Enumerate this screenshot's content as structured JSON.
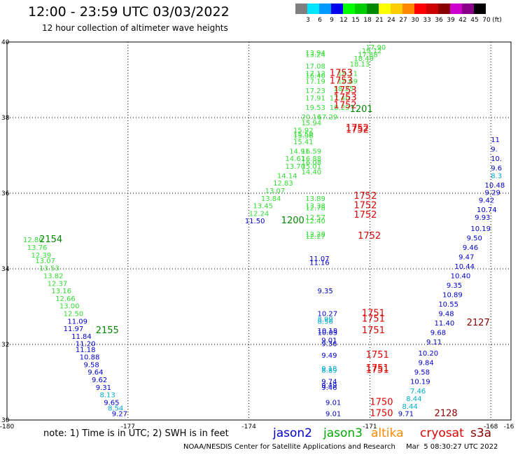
{
  "header": {
    "title": "12:00 - 23:59 UTC 03/03/2022",
    "subtitle": "12 hour collection of altimeter wave heights"
  },
  "colorbar": {
    "unit": "(ft)",
    "bins": [
      {
        "label": "3",
        "color": "#7f7f7f"
      },
      {
        "label": "6",
        "color": "#00e5ff"
      },
      {
        "label": "9",
        "color": "#0099ff"
      },
      {
        "label": "12",
        "color": "#0000ee"
      },
      {
        "label": "15",
        "color": "#00ff00"
      },
      {
        "label": "18",
        "color": "#00cc00"
      },
      {
        "label": "21",
        "color": "#008800"
      },
      {
        "label": "24",
        "color": "#ffff00"
      },
      {
        "label": "27",
        "color": "#ffcc00"
      },
      {
        "label": "30",
        "color": "#ff8800"
      },
      {
        "label": "33",
        "color": "#ff0000"
      },
      {
        "label": "36",
        "color": "#cc0000"
      },
      {
        "label": "39",
        "color": "#880000"
      },
      {
        "label": "42",
        "color": "#cc00cc"
      },
      {
        "label": "45",
        "color": "#880088"
      },
      {
        "label": "70",
        "color": "#000000"
      }
    ]
  },
  "map": {
    "lon_range": [
      -180,
      -168
    ],
    "lat_range": [
      30,
      40
    ],
    "lon_ticks": [
      "-180",
      "-177",
      "-174",
      "-171",
      "-168",
      "-16"
    ],
    "lat_ticks": [
      "40",
      "38",
      "36",
      "34",
      "32",
      "30"
    ],
    "colors": {
      "jason2": "#0000cc",
      "jason3": "#00aa00",
      "altika": "#ff8800",
      "cryosat": "#dd0000",
      "s3a": "#880000",
      "lightgreen": "#33dd33",
      "cyan": "#00aacc",
      "darkgreen": "#008800"
    },
    "labels": [
      {
        "lon": -171.1,
        "lat": 39.8,
        "text": "17.90",
        "c": "lightgreen"
      },
      {
        "lon": -171.2,
        "lat": 39.7,
        "text": "19.12",
        "c": "lightgreen"
      },
      {
        "lon": -171.3,
        "lat": 39.6,
        "text": "17.88",
        "c": "lightgreen"
      },
      {
        "lon": -171.4,
        "lat": 39.5,
        "text": "18.49",
        "c": "lightgreen"
      },
      {
        "lon": -171.5,
        "lat": 39.35,
        "text": "18.13",
        "c": "lightgreen"
      },
      {
        "lon": -172.6,
        "lat": 39.65,
        "text": "13.94",
        "c": "lightgreen"
      },
      {
        "lon": -172.6,
        "lat": 39.6,
        "text": "13.24",
        "c": "lightgreen"
      },
      {
        "lon": -172.6,
        "lat": 39.3,
        "text": "17.08",
        "c": "lightgreen"
      },
      {
        "lon": -172.6,
        "lat": 39.1,
        "text": "17.12",
        "c": "lightgreen"
      },
      {
        "lon": -172.6,
        "lat": 39.05,
        "text": "16.40",
        "c": "lightgreen"
      },
      {
        "lon": -172.6,
        "lat": 38.9,
        "text": "17.19",
        "c": "lightgreen"
      },
      {
        "lon": -171.8,
        "lat": 39.1,
        "text": "18.11",
        "c": "lightgreen"
      },
      {
        "lon": -171.8,
        "lat": 38.9,
        "text": "18.69",
        "c": "lightgreen"
      },
      {
        "lon": -172.6,
        "lat": 38.65,
        "text": "17.23",
        "c": "lightgreen"
      },
      {
        "lon": -171.9,
        "lat": 38.7,
        "text": "18.25",
        "c": "lightgreen"
      },
      {
        "lon": -172.6,
        "lat": 38.45,
        "text": "17.91",
        "c": "lightgreen"
      },
      {
        "lon": -172.0,
        "lat": 38.45,
        "text": "17.40",
        "c": "lightgreen"
      },
      {
        "lon": -172.6,
        "lat": 38.2,
        "text": "19.53",
        "c": "lightgreen"
      },
      {
        "lon": -172.0,
        "lat": 38.2,
        "text": "18.29",
        "c": "lightgreen"
      },
      {
        "lon": -172.7,
        "lat": 37.95,
        "text": "20.16",
        "c": "lightgreen"
      },
      {
        "lon": -172.3,
        "lat": 37.95,
        "text": "17.29",
        "c": "lightgreen"
      },
      {
        "lon": -172.7,
        "lat": 37.8,
        "text": "15.94",
        "c": "lightgreen"
      },
      {
        "lon": -172.9,
        "lat": 37.6,
        "text": "15.92",
        "c": "lightgreen"
      },
      {
        "lon": -172.9,
        "lat": 37.5,
        "text": "15.59",
        "c": "lightgreen"
      },
      {
        "lon": -172.9,
        "lat": 37.45,
        "text": "15.96",
        "c": "lightgreen"
      },
      {
        "lon": -172.9,
        "lat": 37.3,
        "text": "15.41",
        "c": "lightgreen"
      },
      {
        "lon": -173.0,
        "lat": 37.05,
        "text": "14.91",
        "c": "lightgreen"
      },
      {
        "lon": -172.7,
        "lat": 37.05,
        "text": "16.59",
        "c": "lightgreen"
      },
      {
        "lon": -173.1,
        "lat": 36.85,
        "text": "14.61",
        "c": "lightgreen"
      },
      {
        "lon": -172.7,
        "lat": 36.85,
        "text": "16.88",
        "c": "lightgreen"
      },
      {
        "lon": -172.7,
        "lat": 36.75,
        "text": "16.08",
        "c": "lightgreen"
      },
      {
        "lon": -173.1,
        "lat": 36.65,
        "text": "13.70",
        "c": "lightgreen"
      },
      {
        "lon": -172.7,
        "lat": 36.65,
        "text": "15.01",
        "c": "lightgreen"
      },
      {
        "lon": -172.7,
        "lat": 36.5,
        "text": "14.40",
        "c": "lightgreen"
      },
      {
        "lon": -173.3,
        "lat": 36.4,
        "text": "14.14",
        "c": "lightgreen"
      },
      {
        "lon": -173.4,
        "lat": 36.2,
        "text": "12.83",
        "c": "lightgreen"
      },
      {
        "lon": -173.6,
        "lat": 36.0,
        "text": "13.07",
        "c": "lightgreen"
      },
      {
        "lon": -173.7,
        "lat": 35.8,
        "text": "13.84",
        "c": "lightgreen"
      },
      {
        "lon": -173.9,
        "lat": 35.6,
        "text": "13.45",
        "c": "lightgreen"
      },
      {
        "lon": -174.0,
        "lat": 35.4,
        "text": "12.24",
        "c": "lightgreen"
      },
      {
        "lon": -174.1,
        "lat": 35.2,
        "text": "11.50",
        "c": "jason2"
      },
      {
        "lon": -172.6,
        "lat": 35.8,
        "text": "13.89",
        "c": "lightgreen"
      },
      {
        "lon": -172.6,
        "lat": 35.6,
        "text": "13.38",
        "c": "lightgreen"
      },
      {
        "lon": -172.6,
        "lat": 35.55,
        "text": "12.78",
        "c": "lightgreen"
      },
      {
        "lon": -172.6,
        "lat": 35.3,
        "text": "12.57",
        "c": "lightgreen"
      },
      {
        "lon": -172.6,
        "lat": 35.2,
        "text": "12.40",
        "c": "lightgreen"
      },
      {
        "lon": -172.6,
        "lat": 34.85,
        "text": "12.28",
        "c": "lightgreen"
      },
      {
        "lon": -172.6,
        "lat": 34.8,
        "text": "12.27",
        "c": "lightgreen"
      },
      {
        "lon": -172.5,
        "lat": 34.2,
        "text": "11.07",
        "c": "jason2"
      },
      {
        "lon": -172.5,
        "lat": 34.1,
        "text": "11.16",
        "c": "jason2"
      },
      {
        "lon": -172.3,
        "lat": 33.35,
        "text": "9.35",
        "c": "jason2"
      },
      {
        "lon": -172.3,
        "lat": 32.75,
        "text": "10.27",
        "c": "jason2"
      },
      {
        "lon": -172.3,
        "lat": 32.6,
        "text": "8.99",
        "c": "cyan"
      },
      {
        "lon": -172.3,
        "lat": 32.55,
        "text": "8.56",
        "c": "cyan"
      },
      {
        "lon": -172.3,
        "lat": 32.3,
        "text": "10.18",
        "c": "jason2"
      },
      {
        "lon": -172.3,
        "lat": 32.25,
        "text": "10.03",
        "c": "jason2"
      },
      {
        "lon": -172.2,
        "lat": 32.05,
        "text": "9.01",
        "c": "jason2"
      },
      {
        "lon": -172.2,
        "lat": 31.95,
        "text": "9.36",
        "c": "jason2"
      },
      {
        "lon": -172.2,
        "lat": 31.65,
        "text": "9.49",
        "c": "jason2"
      },
      {
        "lon": -172.2,
        "lat": 31.3,
        "text": "9.18",
        "c": "cyan"
      },
      {
        "lon": -172.2,
        "lat": 31.25,
        "text": "8.89",
        "c": "cyan"
      },
      {
        "lon": -172.2,
        "lat": 30.95,
        "text": "9.74",
        "c": "jason2"
      },
      {
        "lon": -172.2,
        "lat": 30.85,
        "text": "9.49",
        "c": "jason2"
      },
      {
        "lon": -172.2,
        "lat": 30.8,
        "text": "9.46",
        "c": "jason2"
      },
      {
        "lon": -172.1,
        "lat": 30.4,
        "text": "9.01",
        "c": "jason2"
      },
      {
        "lon": -172.1,
        "lat": 30.1,
        "text": "9.01",
        "c": "jason2"
      },
      {
        "lon": -179.6,
        "lat": 34.7,
        "text": "12.80",
        "c": "lightgreen"
      },
      {
        "lon": -179.5,
        "lat": 34.5,
        "text": "13.76",
        "c": "lightgreen"
      },
      {
        "lon": -179.4,
        "lat": 34.3,
        "text": "12.39",
        "c": "lightgreen"
      },
      {
        "lon": -179.3,
        "lat": 34.15,
        "text": "13.07",
        "c": "lightgreen"
      },
      {
        "lon": -179.2,
        "lat": 33.95,
        "text": "13.53",
        "c": "lightgreen"
      },
      {
        "lon": -179.1,
        "lat": 33.75,
        "text": "13.82",
        "c": "lightgreen"
      },
      {
        "lon": -179.0,
        "lat": 33.55,
        "text": "12.37",
        "c": "lightgreen"
      },
      {
        "lon": -178.9,
        "lat": 33.35,
        "text": "13.16",
        "c": "lightgreen"
      },
      {
        "lon": -178.8,
        "lat": 33.15,
        "text": "12.66",
        "c": "lightgreen"
      },
      {
        "lon": -178.7,
        "lat": 32.95,
        "text": "13.00",
        "c": "lightgreen"
      },
      {
        "lon": -178.6,
        "lat": 32.75,
        "text": "12.50",
        "c": "lightgreen"
      },
      {
        "lon": -178.5,
        "lat": 32.55,
        "text": "11.09",
        "c": "jason2"
      },
      {
        "lon": -178.6,
        "lat": 32.35,
        "text": "11.97",
        "c": "jason2"
      },
      {
        "lon": -178.4,
        "lat": 32.15,
        "text": "11.84",
        "c": "jason2"
      },
      {
        "lon": -178.3,
        "lat": 31.95,
        "text": "11.20",
        "c": "jason2"
      },
      {
        "lon": -178.3,
        "lat": 31.8,
        "text": "11.18",
        "c": "jason2"
      },
      {
        "lon": -178.2,
        "lat": 31.6,
        "text": "10.88",
        "c": "jason2"
      },
      {
        "lon": -178.1,
        "lat": 31.4,
        "text": "9.58",
        "c": "jason2"
      },
      {
        "lon": -178.0,
        "lat": 31.2,
        "text": "9.64",
        "c": "jason2"
      },
      {
        "lon": -177.9,
        "lat": 31.0,
        "text": "9.62",
        "c": "jason2"
      },
      {
        "lon": -177.8,
        "lat": 30.8,
        "text": "9.31",
        "c": "jason2"
      },
      {
        "lon": -177.7,
        "lat": 30.6,
        "text": "8.13",
        "c": "cyan"
      },
      {
        "lon": -177.6,
        "lat": 30.4,
        "text": "9.65",
        "c": "jason2"
      },
      {
        "lon": -177.5,
        "lat": 30.25,
        "text": "8.54",
        "c": "cyan"
      },
      {
        "lon": -177.4,
        "lat": 30.1,
        "text": "9.27",
        "c": "jason2"
      },
      {
        "lon": -168.0,
        "lat": 37.35,
        "text": "11",
        "c": "jason2"
      },
      {
        "lon": -168.0,
        "lat": 37.1,
        "text": "9.",
        "c": "jason2"
      },
      {
        "lon": -168.0,
        "lat": 36.85,
        "text": "10.",
        "c": "jason2"
      },
      {
        "lon": -168.0,
        "lat": 36.6,
        "text": "9.6",
        "c": "jason2"
      },
      {
        "lon": -168.0,
        "lat": 36.4,
        "text": "8.3",
        "c": "cyan"
      },
      {
        "lon": -168.15,
        "lat": 36.15,
        "text": "10.48",
        "c": "jason2"
      },
      {
        "lon": -168.15,
        "lat": 35.95,
        "text": "9.29",
        "c": "jason2"
      },
      {
        "lon": -168.3,
        "lat": 35.75,
        "text": "9.42",
        "c": "jason2"
      },
      {
        "lon": -168.35,
        "lat": 35.5,
        "text": "10.74",
        "c": "jason2"
      },
      {
        "lon": -168.4,
        "lat": 35.3,
        "text": "9.93",
        "c": "jason2"
      },
      {
        "lon": -168.5,
        "lat": 35.0,
        "text": "10.19",
        "c": "jason2"
      },
      {
        "lon": -168.6,
        "lat": 34.75,
        "text": "9.50",
        "c": "jason2"
      },
      {
        "lon": -168.7,
        "lat": 34.5,
        "text": "9.46",
        "c": "jason2"
      },
      {
        "lon": -168.8,
        "lat": 34.25,
        "text": "9.47",
        "c": "jason2"
      },
      {
        "lon": -168.9,
        "lat": 34.0,
        "text": "10.44",
        "c": "jason2"
      },
      {
        "lon": -169.0,
        "lat": 33.75,
        "text": "10.40",
        "c": "jason2"
      },
      {
        "lon": -169.1,
        "lat": 33.5,
        "text": "9.35",
        "c": "jason2"
      },
      {
        "lon": -169.2,
        "lat": 33.25,
        "text": "10.89",
        "c": "jason2"
      },
      {
        "lon": -169.3,
        "lat": 33.0,
        "text": "10.55",
        "c": "jason2"
      },
      {
        "lon": -169.3,
        "lat": 32.75,
        "text": "9.48",
        "c": "jason2"
      },
      {
        "lon": -169.4,
        "lat": 32.5,
        "text": "11.40",
        "c": "jason2"
      },
      {
        "lon": -169.5,
        "lat": 32.25,
        "text": "9.68",
        "c": "jason2"
      },
      {
        "lon": -169.6,
        "lat": 32.0,
        "text": "9.11",
        "c": "jason2"
      },
      {
        "lon": -169.8,
        "lat": 31.7,
        "text": "10.20",
        "c": "jason2"
      },
      {
        "lon": -169.8,
        "lat": 31.45,
        "text": "9.84",
        "c": "jason2"
      },
      {
        "lon": -169.9,
        "lat": 31.2,
        "text": "9.58",
        "c": "jason2"
      },
      {
        "lon": -170.0,
        "lat": 30.95,
        "text": "10.19",
        "c": "jason2"
      },
      {
        "lon": -170.0,
        "lat": 30.7,
        "text": "7.46",
        "c": "cyan"
      },
      {
        "lon": -170.1,
        "lat": 30.5,
        "text": "8.44",
        "c": "cyan"
      },
      {
        "lon": -170.2,
        "lat": 30.3,
        "text": "8.44",
        "c": "cyan"
      },
      {
        "lon": -170.3,
        "lat": 30.1,
        "text": "9.71",
        "c": "jason2"
      }
    ],
    "pass_labels": [
      {
        "lon": -172.0,
        "lat": 39.1,
        "text": "1753",
        "c": "cryosat"
      },
      {
        "lon": -172.0,
        "lat": 38.9,
        "text": "1753",
        "c": "cryosat"
      },
      {
        "lon": -171.9,
        "lat": 38.65,
        "text": "1753",
        "c": "cryosat"
      },
      {
        "lon": -171.9,
        "lat": 38.45,
        "text": "1753",
        "c": "cryosat"
      },
      {
        "lon": -171.9,
        "lat": 38.25,
        "text": "1752",
        "c": "cryosat"
      },
      {
        "lon": -171.5,
        "lat": 38.15,
        "text": "1201",
        "c": "darkgreen"
      },
      {
        "lon": -171.6,
        "lat": 37.65,
        "text": "1752",
        "c": "cryosat"
      },
      {
        "lon": -171.6,
        "lat": 37.6,
        "text": "1752",
        "c": "cryosat"
      },
      {
        "lon": -171.4,
        "lat": 35.85,
        "text": "1752",
        "c": "cryosat"
      },
      {
        "lon": -171.4,
        "lat": 35.6,
        "text": "1752",
        "c": "cryosat"
      },
      {
        "lon": -171.4,
        "lat": 35.35,
        "text": "1752",
        "c": "cryosat"
      },
      {
        "lon": -173.2,
        "lat": 35.2,
        "text": "1200",
        "c": "darkgreen"
      },
      {
        "lon": -171.3,
        "lat": 34.8,
        "text": "1752",
        "c": "cryosat"
      },
      {
        "lon": -179.2,
        "lat": 34.7,
        "text": "2154",
        "c": "darkgreen"
      },
      {
        "lon": -171.2,
        "lat": 32.75,
        "text": "1751",
        "c": "cryosat"
      },
      {
        "lon": -171.2,
        "lat": 32.6,
        "text": "1751",
        "c": "cryosat"
      },
      {
        "lon": -171.2,
        "lat": 32.3,
        "text": "1751",
        "c": "cryosat"
      },
      {
        "lon": -177.8,
        "lat": 32.3,
        "text": "2155",
        "c": "darkgreen"
      },
      {
        "lon": -171.1,
        "lat": 31.65,
        "text": "1751",
        "c": "cryosat"
      },
      {
        "lon": -171.1,
        "lat": 31.3,
        "text": "1751",
        "c": "cryosat"
      },
      {
        "lon": -171.1,
        "lat": 31.25,
        "text": "1751",
        "c": "cryosat"
      },
      {
        "lon": -168.6,
        "lat": 32.5,
        "text": "2127",
        "c": "s3a"
      },
      {
        "lon": -171.0,
        "lat": 30.4,
        "text": "1750",
        "c": "cryosat"
      },
      {
        "lon": -171.0,
        "lat": 30.1,
        "text": "1750",
        "c": "cryosat"
      },
      {
        "lon": -169.4,
        "lat": 30.1,
        "text": "2128",
        "c": "s3a"
      }
    ]
  },
  "note": "note: 1) Time is in UTC; 2) SWH is in feet",
  "satellites": [
    {
      "name": "jason2",
      "color": "#0000cc"
    },
    {
      "name": "jason3",
      "color": "#00aa00"
    },
    {
      "name": "altika",
      "color": "#ff8800"
    },
    {
      "name": "cryosat",
      "color": "#dd0000"
    },
    {
      "name": "s3a",
      "color": "#880000"
    }
  ],
  "footer": {
    "credit": "NOAA/NESDIS Center for Satellite Applications and Research",
    "timestamp": "Mar  5 08:30:27 UTC 2022"
  }
}
